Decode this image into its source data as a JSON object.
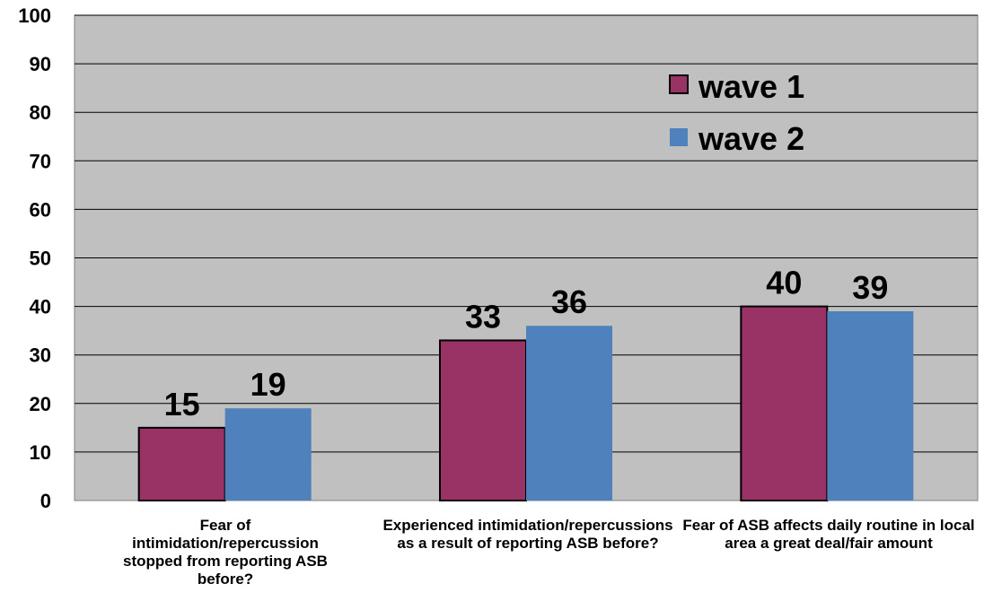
{
  "chart_data": {
    "type": "bar",
    "categories": [
      "Fear of intimidation/repercussion stopped from reporting ASB before?",
      "Experienced intimidation/repercussions as a result of reporting ASB before?",
      "Fear of ASB affects daily routine in local area a great deal/fair amount"
    ],
    "series": [
      {
        "name": "wave 1",
        "values": [
          15,
          33,
          40
        ],
        "color": "#993366"
      },
      {
        "name": "wave 2",
        "values": [
          19,
          36,
          39
        ],
        "color": "#4F81BD"
      }
    ],
    "ylim": [
      0,
      100
    ],
    "yticks": [
      0,
      10,
      20,
      30,
      40,
      50,
      60,
      70,
      80,
      90,
      100
    ],
    "grid": true,
    "plot_background": "#C0C0C0",
    "legend": "top-right",
    "data_labels": true,
    "title": "",
    "xlabel": "",
    "ylabel": ""
  }
}
